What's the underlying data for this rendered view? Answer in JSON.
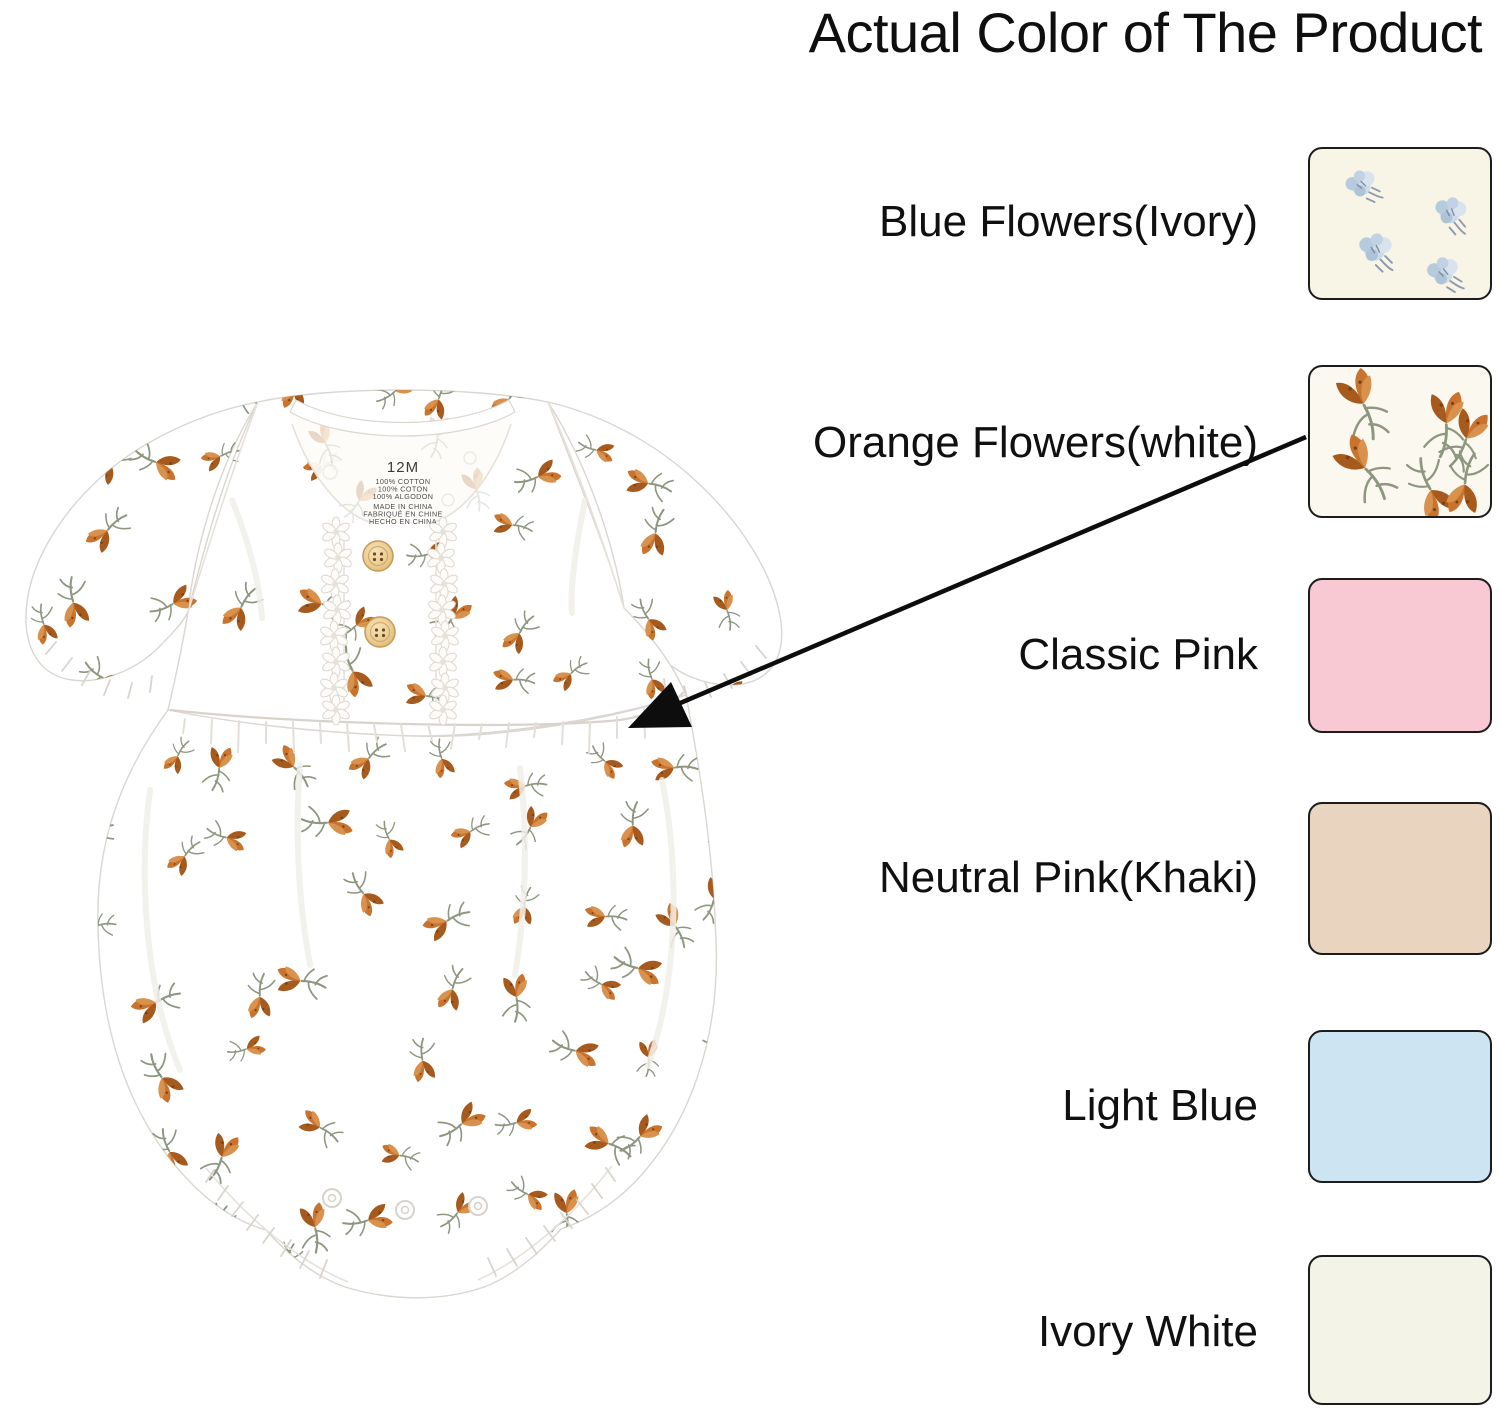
{
  "title": "Actual Color of The Product",
  "product_tag": {
    "size": "12M",
    "materials": [
      "100% COTTON",
      "100% COTON",
      "100% ALGODON"
    ],
    "origin": [
      "MADE IN CHINA",
      "FABRIQUÉ EN CHINE",
      "HECHO EN CHINA"
    ]
  },
  "swatches": [
    {
      "label": "Blue Flowers(Ivory)",
      "bg": "#f8f5e6",
      "pattern": "blue-flowers"
    },
    {
      "label": "Orange Flowers(white)",
      "bg": "#fbf8f0",
      "pattern": "orange-flowers"
    },
    {
      "label": "Classic Pink",
      "bg": "#f9c9d3",
      "pattern": "solid"
    },
    {
      "label": "Neutral Pink(Khaki)",
      "bg": "#e9d4c0",
      "pattern": "solid"
    },
    {
      "label": "Light Blue",
      "bg": "#cde4f2",
      "pattern": "solid"
    },
    {
      "label": "Ivory White",
      "bg": "#f3f3e8",
      "pattern": "solid"
    }
  ],
  "annotation": {
    "arrow_links": "Orange Flowers(white) swatch to romper waist"
  },
  "colors": {
    "flower_main": "#c9742e",
    "flower_dark": "#a65a1d",
    "flower_light": "#d9924d",
    "flower_speck": "#7a4012",
    "stem": "#8d967f",
    "arrow": "#0d0d0d",
    "swatch_border": "#1c1c1c",
    "label_text": "#101010"
  }
}
